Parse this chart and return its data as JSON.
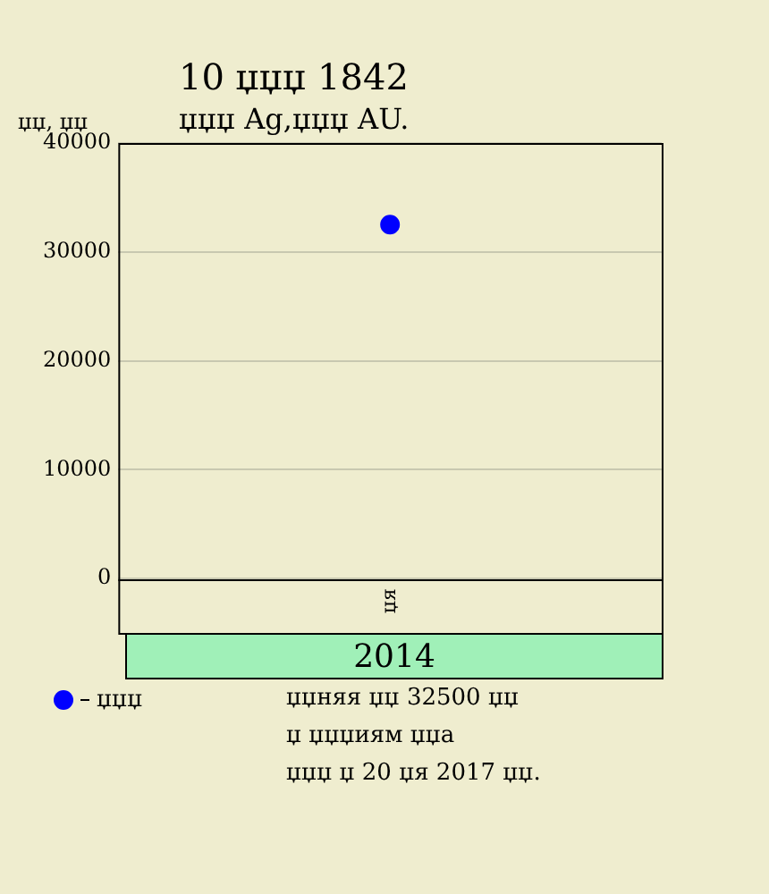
{
  "chart_data": {
    "type": "scatter",
    "title": "10 џџџ 1842",
    "subtitle": "џџџ Ag,џџџ AU.",
    "ylabel": "џџ, џџ",
    "categories": [
      "џя"
    ],
    "series": [
      {
        "name": "џџџ",
        "color": "#0000ff",
        "values": [
          32500
        ]
      }
    ],
    "ylim": [
      -5000,
      40000
    ],
    "yticks": [
      0,
      10000,
      20000,
      30000,
      40000
    ],
    "grid": "y",
    "legend": "bottom left",
    "marker": "circle",
    "annotations": [
      "2014",
      "џџняя џџ 32500 џџ",
      "џ џџџиям џџа",
      "џџџ џ 20 џя 2017 џџ."
    ]
  }
}
